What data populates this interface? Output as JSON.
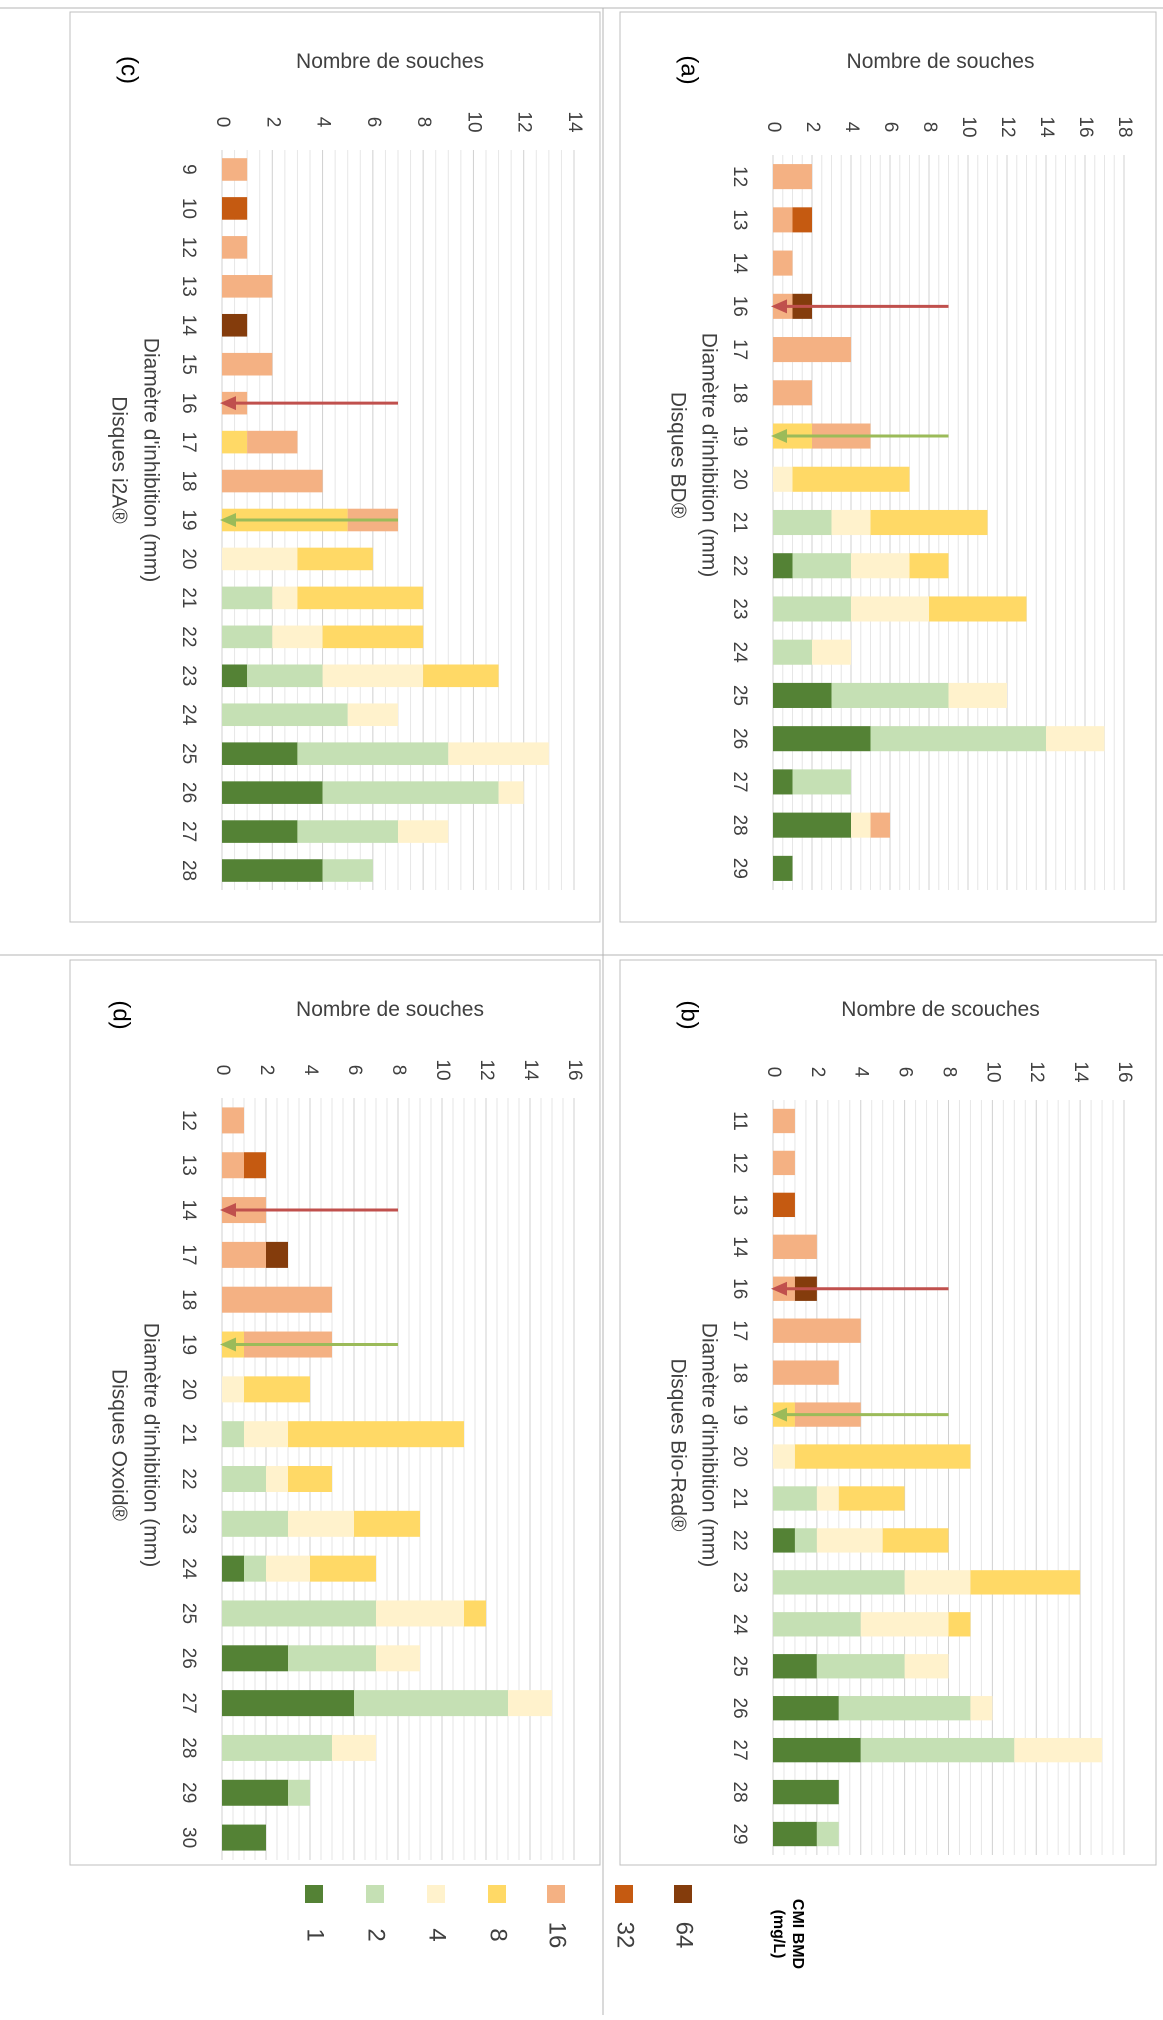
{
  "legend": {
    "title_line1": "CMI BMD",
    "title_line2": "(mg/L)",
    "items": [
      {
        "label": "64",
        "color": "#843c0c"
      },
      {
        "label": "32",
        "color": "#c55a11"
      },
      {
        "label": "16",
        "color": "#f4b183"
      },
      {
        "label": "8",
        "color": "#ffd966"
      },
      {
        "label": "4",
        "color": "#fff2cc"
      },
      {
        "label": "2",
        "color": "#c5e0b4"
      },
      {
        "label": "1",
        "color": "#548235"
      }
    ]
  },
  "chart_data": [
    {
      "panel": "(a)",
      "type": "bar",
      "stacked": true,
      "ylabel": "Nombre de souches",
      "xlabel": "Diamètre d'inhibition (mm)",
      "subtitle": "Disques BD®",
      "ylim": [
        0,
        18
      ],
      "yticks": [
        0,
        2,
        4,
        6,
        8,
        10,
        12,
        14,
        16,
        18
      ],
      "categories": [
        "12",
        "13",
        "14",
        "16",
        "17",
        "18",
        "19",
        "20",
        "21",
        "22",
        "23",
        "24",
        "25",
        "26",
        "27",
        "28",
        "29"
      ],
      "series": [
        {
          "name": "1",
          "values": [
            0,
            0,
            0,
            0,
            0,
            0,
            0,
            0,
            0,
            1,
            0,
            0,
            3,
            5,
            1,
            4,
            1
          ]
        },
        {
          "name": "2",
          "values": [
            0,
            0,
            0,
            0,
            0,
            0,
            0,
            0,
            3,
            3,
            4,
            2,
            6,
            9,
            3,
            0,
            0
          ]
        },
        {
          "name": "4",
          "values": [
            0,
            0,
            0,
            0,
            0,
            0,
            0,
            1,
            2,
            3,
            4,
            2,
            3,
            3,
            0,
            1,
            0
          ]
        },
        {
          "name": "8",
          "values": [
            0,
            0,
            0,
            0,
            0,
            0,
            2,
            6,
            6,
            2,
            5,
            0,
            0,
            0,
            0,
            0,
            0
          ]
        },
        {
          "name": "16",
          "values": [
            2,
            1,
            1,
            1,
            4,
            2,
            3,
            0,
            0,
            0,
            0,
            0,
            0,
            0,
            0,
            1,
            0
          ]
        },
        {
          "name": "32",
          "values": [
            0,
            1,
            0,
            0,
            0,
            0,
            0,
            0,
            0,
            0,
            0,
            0,
            0,
            0,
            0,
            0,
            0
          ]
        },
        {
          "name": "64",
          "values": [
            0,
            0,
            0,
            1,
            0,
            0,
            0,
            0,
            0,
            0,
            0,
            0,
            0,
            0,
            0,
            0,
            0
          ]
        }
      ],
      "arrows": [
        {
          "color": "#c0504d",
          "category_position": 3.5,
          "length": 9
        },
        {
          "color": "#9bbb59",
          "category_position": 6.5,
          "length": 9
        }
      ]
    },
    {
      "panel": "(b)",
      "type": "bar",
      "stacked": true,
      "ylabel": "Nombre de scouches",
      "xlabel": "Diamètre d'inhibition (mm)",
      "subtitle": "Disques Bio-Rad®",
      "ylim": [
        0,
        16
      ],
      "yticks": [
        0,
        2,
        4,
        6,
        8,
        10,
        12,
        14,
        16
      ],
      "categories": [
        "11",
        "12",
        "13",
        "14",
        "16",
        "17",
        "18",
        "19",
        "20",
        "21",
        "22",
        "23",
        "24",
        "25",
        "26",
        "27",
        "28",
        "29"
      ],
      "series": [
        {
          "name": "1",
          "values": [
            0,
            0,
            0,
            0,
            0,
            0,
            0,
            0,
            0,
            0,
            1,
            0,
            0,
            2,
            3,
            4,
            3,
            2
          ]
        },
        {
          "name": "2",
          "values": [
            0,
            0,
            0,
            0,
            0,
            0,
            0,
            0,
            0,
            2,
            1,
            6,
            4,
            4,
            6,
            7,
            0,
            1
          ]
        },
        {
          "name": "4",
          "values": [
            0,
            0,
            0,
            0,
            0,
            0,
            0,
            0,
            1,
            1,
            3,
            3,
            4,
            2,
            1,
            4,
            0,
            0
          ]
        },
        {
          "name": "8",
          "values": [
            0,
            0,
            0,
            0,
            0,
            0,
            0,
            1,
            8,
            3,
            3,
            5,
            1,
            0,
            0,
            0,
            0,
            0
          ]
        },
        {
          "name": "16",
          "values": [
            1,
            1,
            0,
            2,
            1,
            4,
            3,
            3,
            0,
            0,
            0,
            0,
            0,
            0,
            0,
            0,
            0,
            0
          ]
        },
        {
          "name": "32",
          "values": [
            0,
            0,
            1,
            0,
            0,
            0,
            0,
            0,
            0,
            0,
            0,
            0,
            0,
            0,
            0,
            0,
            0,
            0
          ]
        },
        {
          "name": "64",
          "values": [
            0,
            0,
            0,
            0,
            1,
            0,
            0,
            0,
            0,
            0,
            0,
            0,
            0,
            0,
            0,
            0,
            0,
            0
          ]
        }
      ],
      "arrows": [
        {
          "color": "#c0504d",
          "category_position": 4.5,
          "length": 8
        },
        {
          "color": "#9bbb59",
          "category_position": 7.5,
          "length": 8
        }
      ]
    },
    {
      "panel": "(c)",
      "type": "bar",
      "stacked": true,
      "ylabel": "Nombre de souches",
      "xlabel": "Diamètre d'inhibition (mm)",
      "subtitle": "Disques  i2A®",
      "ylim": [
        0,
        14
      ],
      "yticks": [
        0,
        2,
        4,
        6,
        8,
        10,
        12,
        14
      ],
      "categories": [
        "9",
        "10",
        "12",
        "13",
        "14",
        "15",
        "16",
        "17",
        "18",
        "19",
        "20",
        "21",
        "22",
        "23",
        "24",
        "25",
        "26",
        "27",
        "28"
      ],
      "series": [
        {
          "name": "1",
          "values": [
            0,
            0,
            0,
            0,
            0,
            0,
            0,
            0,
            0,
            0,
            0,
            0,
            0,
            1,
            0,
            3,
            4,
            3,
            4
          ]
        },
        {
          "name": "2",
          "values": [
            0,
            0,
            0,
            0,
            0,
            0,
            0,
            0,
            0,
            0,
            0,
            2,
            2,
            3,
            5,
            6,
            7,
            4,
            2
          ]
        },
        {
          "name": "4",
          "values": [
            0,
            0,
            0,
            0,
            0,
            0,
            0,
            0,
            0,
            0,
            3,
            1,
            2,
            4,
            2,
            4,
            1,
            2,
            0
          ]
        },
        {
          "name": "8",
          "values": [
            0,
            0,
            0,
            0,
            0,
            0,
            0,
            1,
            0,
            5,
            3,
            5,
            4,
            3,
            0,
            0,
            0,
            0,
            0
          ]
        },
        {
          "name": "16",
          "values": [
            1,
            0,
            1,
            2,
            0,
            2,
            1,
            2,
            4,
            2,
            0,
            0,
            0,
            0,
            0,
            0,
            0,
            0,
            0
          ]
        },
        {
          "name": "32",
          "values": [
            0,
            1,
            0,
            0,
            0,
            0,
            0,
            0,
            0,
            0,
            0,
            0,
            0,
            0,
            0,
            0,
            0,
            0,
            0
          ]
        },
        {
          "name": "64",
          "values": [
            0,
            0,
            0,
            0,
            1,
            0,
            0,
            0,
            0,
            0,
            0,
            0,
            0,
            0,
            0,
            0,
            0,
            0,
            0
          ]
        }
      ],
      "arrows": [
        {
          "color": "#c0504d",
          "category_position": 6.5,
          "length": 7
        },
        {
          "color": "#9bbb59",
          "category_position": 9.5,
          "length": 7
        }
      ]
    },
    {
      "panel": "(d)",
      "type": "bar",
      "stacked": true,
      "ylabel": "Nombre de souches",
      "xlabel": "Diamètre d'inhibition (mm)",
      "subtitle": "Disques Oxoid®",
      "ylim": [
        0,
        16
      ],
      "yticks": [
        0,
        2,
        4,
        6,
        8,
        10,
        12,
        14,
        16
      ],
      "categories": [
        "12",
        "13",
        "14",
        "17",
        "18",
        "19",
        "20",
        "21",
        "22",
        "23",
        "24",
        "25",
        "26",
        "27",
        "28",
        "29",
        "30"
      ],
      "series": [
        {
          "name": "1",
          "values": [
            0,
            0,
            0,
            0,
            0,
            0,
            0,
            0,
            0,
            0,
            1,
            0,
            3,
            6,
            0,
            3,
            2
          ]
        },
        {
          "name": "2",
          "values": [
            0,
            0,
            0,
            0,
            0,
            0,
            0,
            1,
            2,
            3,
            1,
            7,
            4,
            7,
            5,
            1,
            0
          ]
        },
        {
          "name": "4",
          "values": [
            0,
            0,
            0,
            0,
            0,
            0,
            1,
            2,
            1,
            3,
            2,
            4,
            2,
            2,
            2,
            0,
            0
          ]
        },
        {
          "name": "8",
          "values": [
            0,
            0,
            0,
            0,
            0,
            1,
            3,
            8,
            2,
            3,
            3,
            1,
            0,
            0,
            0,
            0,
            0
          ]
        },
        {
          "name": "16",
          "values": [
            1,
            1,
            2,
            2,
            5,
            4,
            0,
            0,
            0,
            0,
            0,
            0,
            0,
            0,
            0,
            0,
            0
          ]
        },
        {
          "name": "32",
          "values": [
            0,
            1,
            0,
            0,
            0,
            0,
            0,
            0,
            0,
            0,
            0,
            0,
            0,
            0,
            0,
            0,
            0
          ]
        },
        {
          "name": "64",
          "values": [
            0,
            0,
            0,
            1,
            0,
            0,
            0,
            0,
            0,
            0,
            0,
            0,
            0,
            0,
            0,
            0,
            0
          ]
        }
      ],
      "arrows": [
        {
          "color": "#c0504d",
          "category_position": 2.5,
          "length": 8
        },
        {
          "color": "#9bbb59",
          "category_position": 5.5,
          "length": 8
        }
      ]
    }
  ]
}
